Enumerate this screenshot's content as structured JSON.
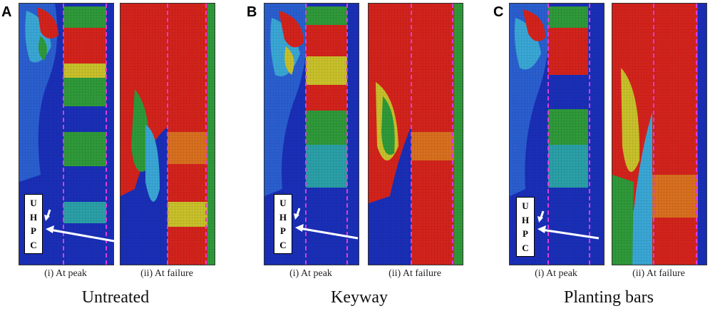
{
  "panels": [
    {
      "letter": "A",
      "group_title": "Untreated",
      "peak_caption": "(i) At peak",
      "failure_caption": "(ii) At failure"
    },
    {
      "letter": "B",
      "group_title": "Keyway",
      "peak_caption": "(i) At peak",
      "failure_caption": "(ii) At failure"
    },
    {
      "letter": "C",
      "group_title": "Planting bars",
      "peak_caption": "(i) At peak",
      "failure_caption": "(ii) At failure"
    }
  ],
  "uhpc_label": [
    "U",
    "H",
    "P",
    "C"
  ],
  "colors": {
    "blue": "#1a2fb8",
    "cyan": "#3aa7d6",
    "green": "#2f9a3a",
    "yellow": "#c9c12a",
    "orange": "#d9701f",
    "red": "#d4231c",
    "dash": "#e03ad9"
  }
}
